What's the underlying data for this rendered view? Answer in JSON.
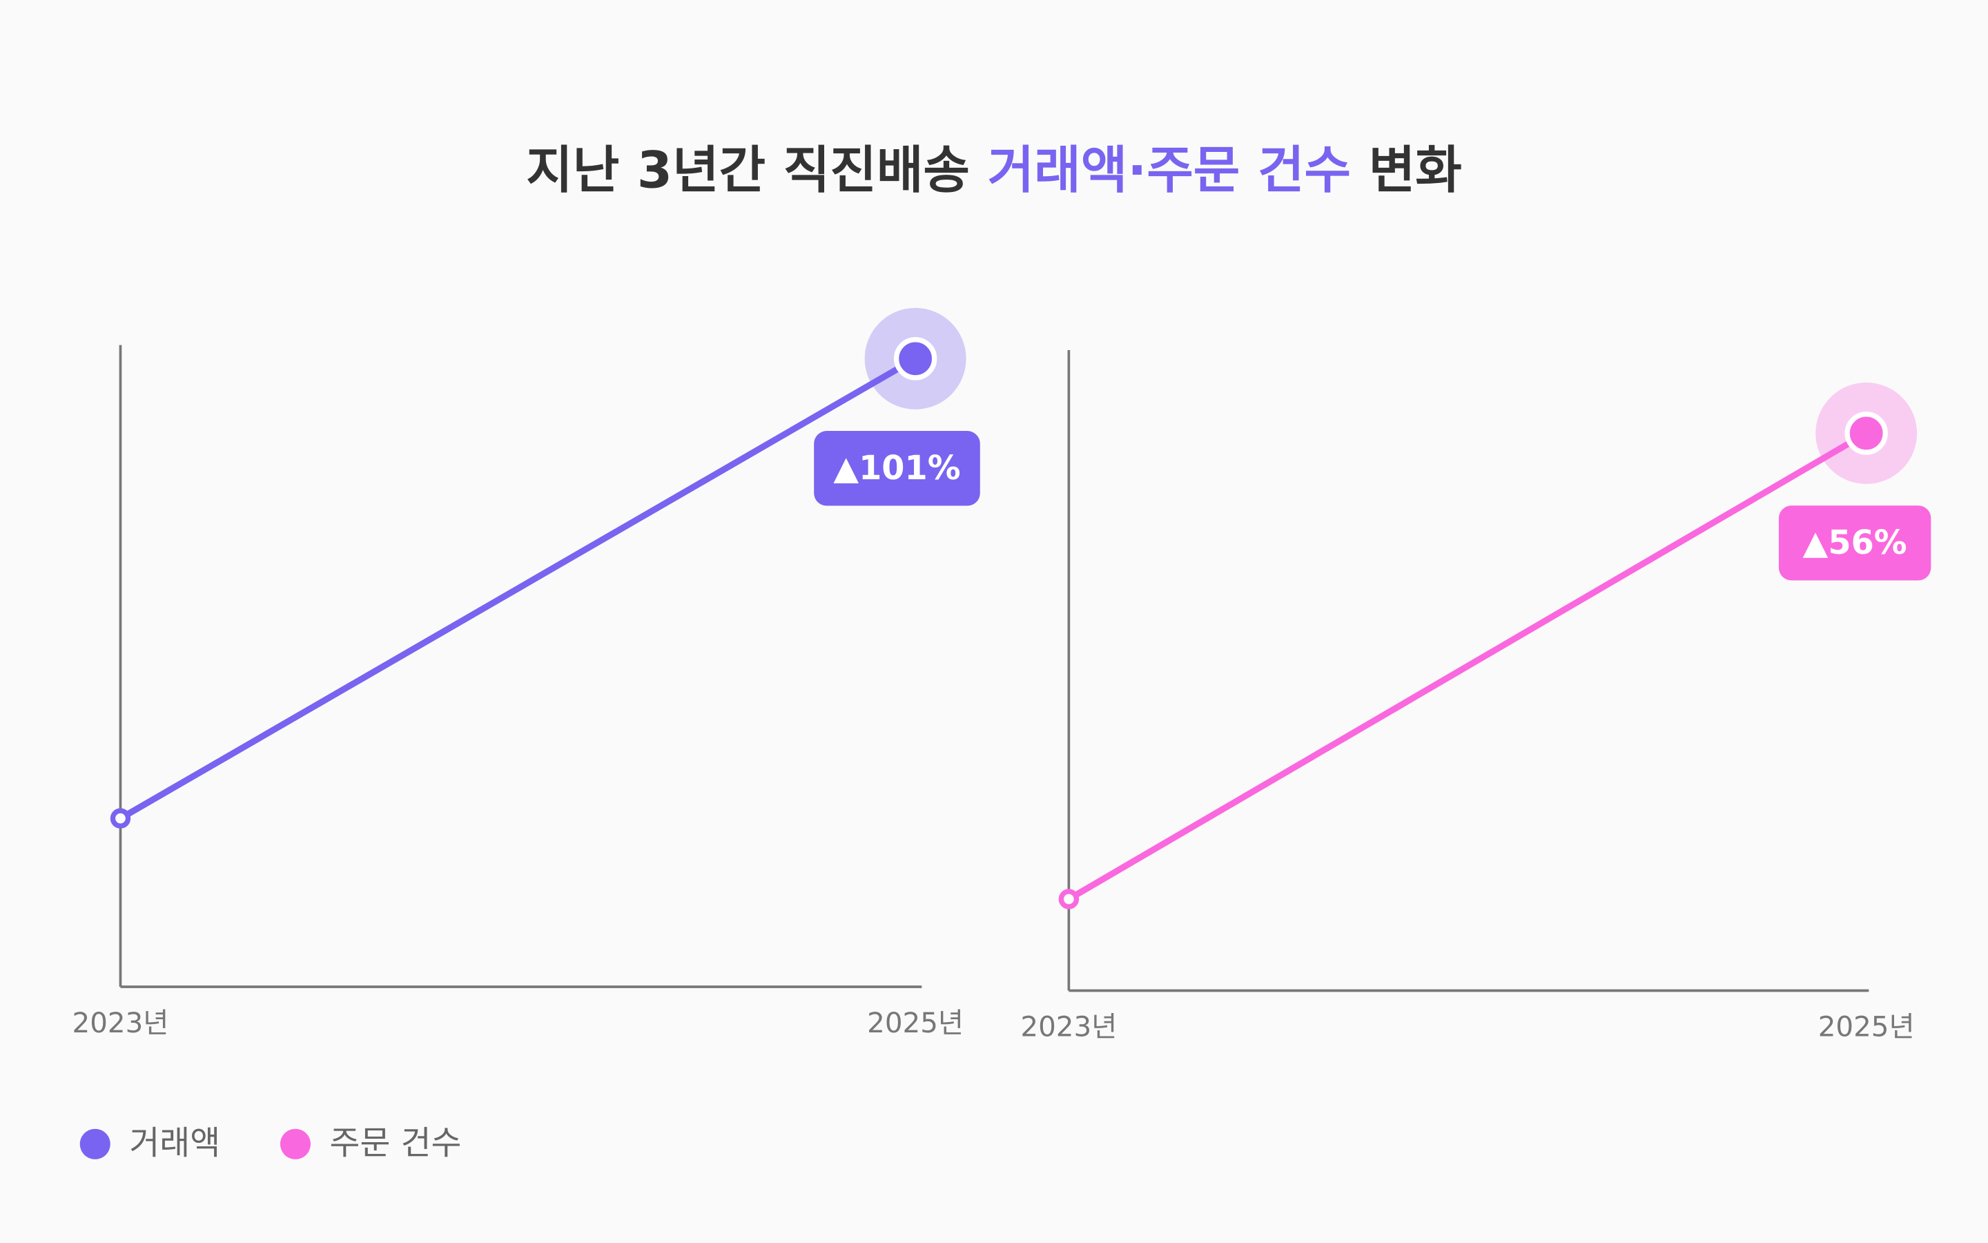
{
  "title": {
    "parts": [
      {
        "text": "지난 3년간 직진배송",
        "color": "#333333"
      },
      {
        "text": "거래액·주문 건수",
        "color": "#7864f0"
      },
      {
        "text": "변화",
        "color": "#333333"
      }
    ]
  },
  "chart_data": [
    {
      "type": "line",
      "categories": [
        "2023년",
        "2025년"
      ],
      "series": [
        {
          "name": "거래액",
          "color": "#7864f0",
          "values": [
            100,
            201
          ]
        }
      ],
      "ylim": [
        63,
        204
      ],
      "annotation": "▲101%"
    },
    {
      "type": "line",
      "categories": [
        "2023년",
        "2025년"
      ],
      "series": [
        {
          "name": "주문 건수",
          "color": "#fa68df",
          "values": [
            100,
            156
          ]
        }
      ],
      "ylim": [
        89,
        166
      ],
      "annotation": "▲56%"
    }
  ]
}
